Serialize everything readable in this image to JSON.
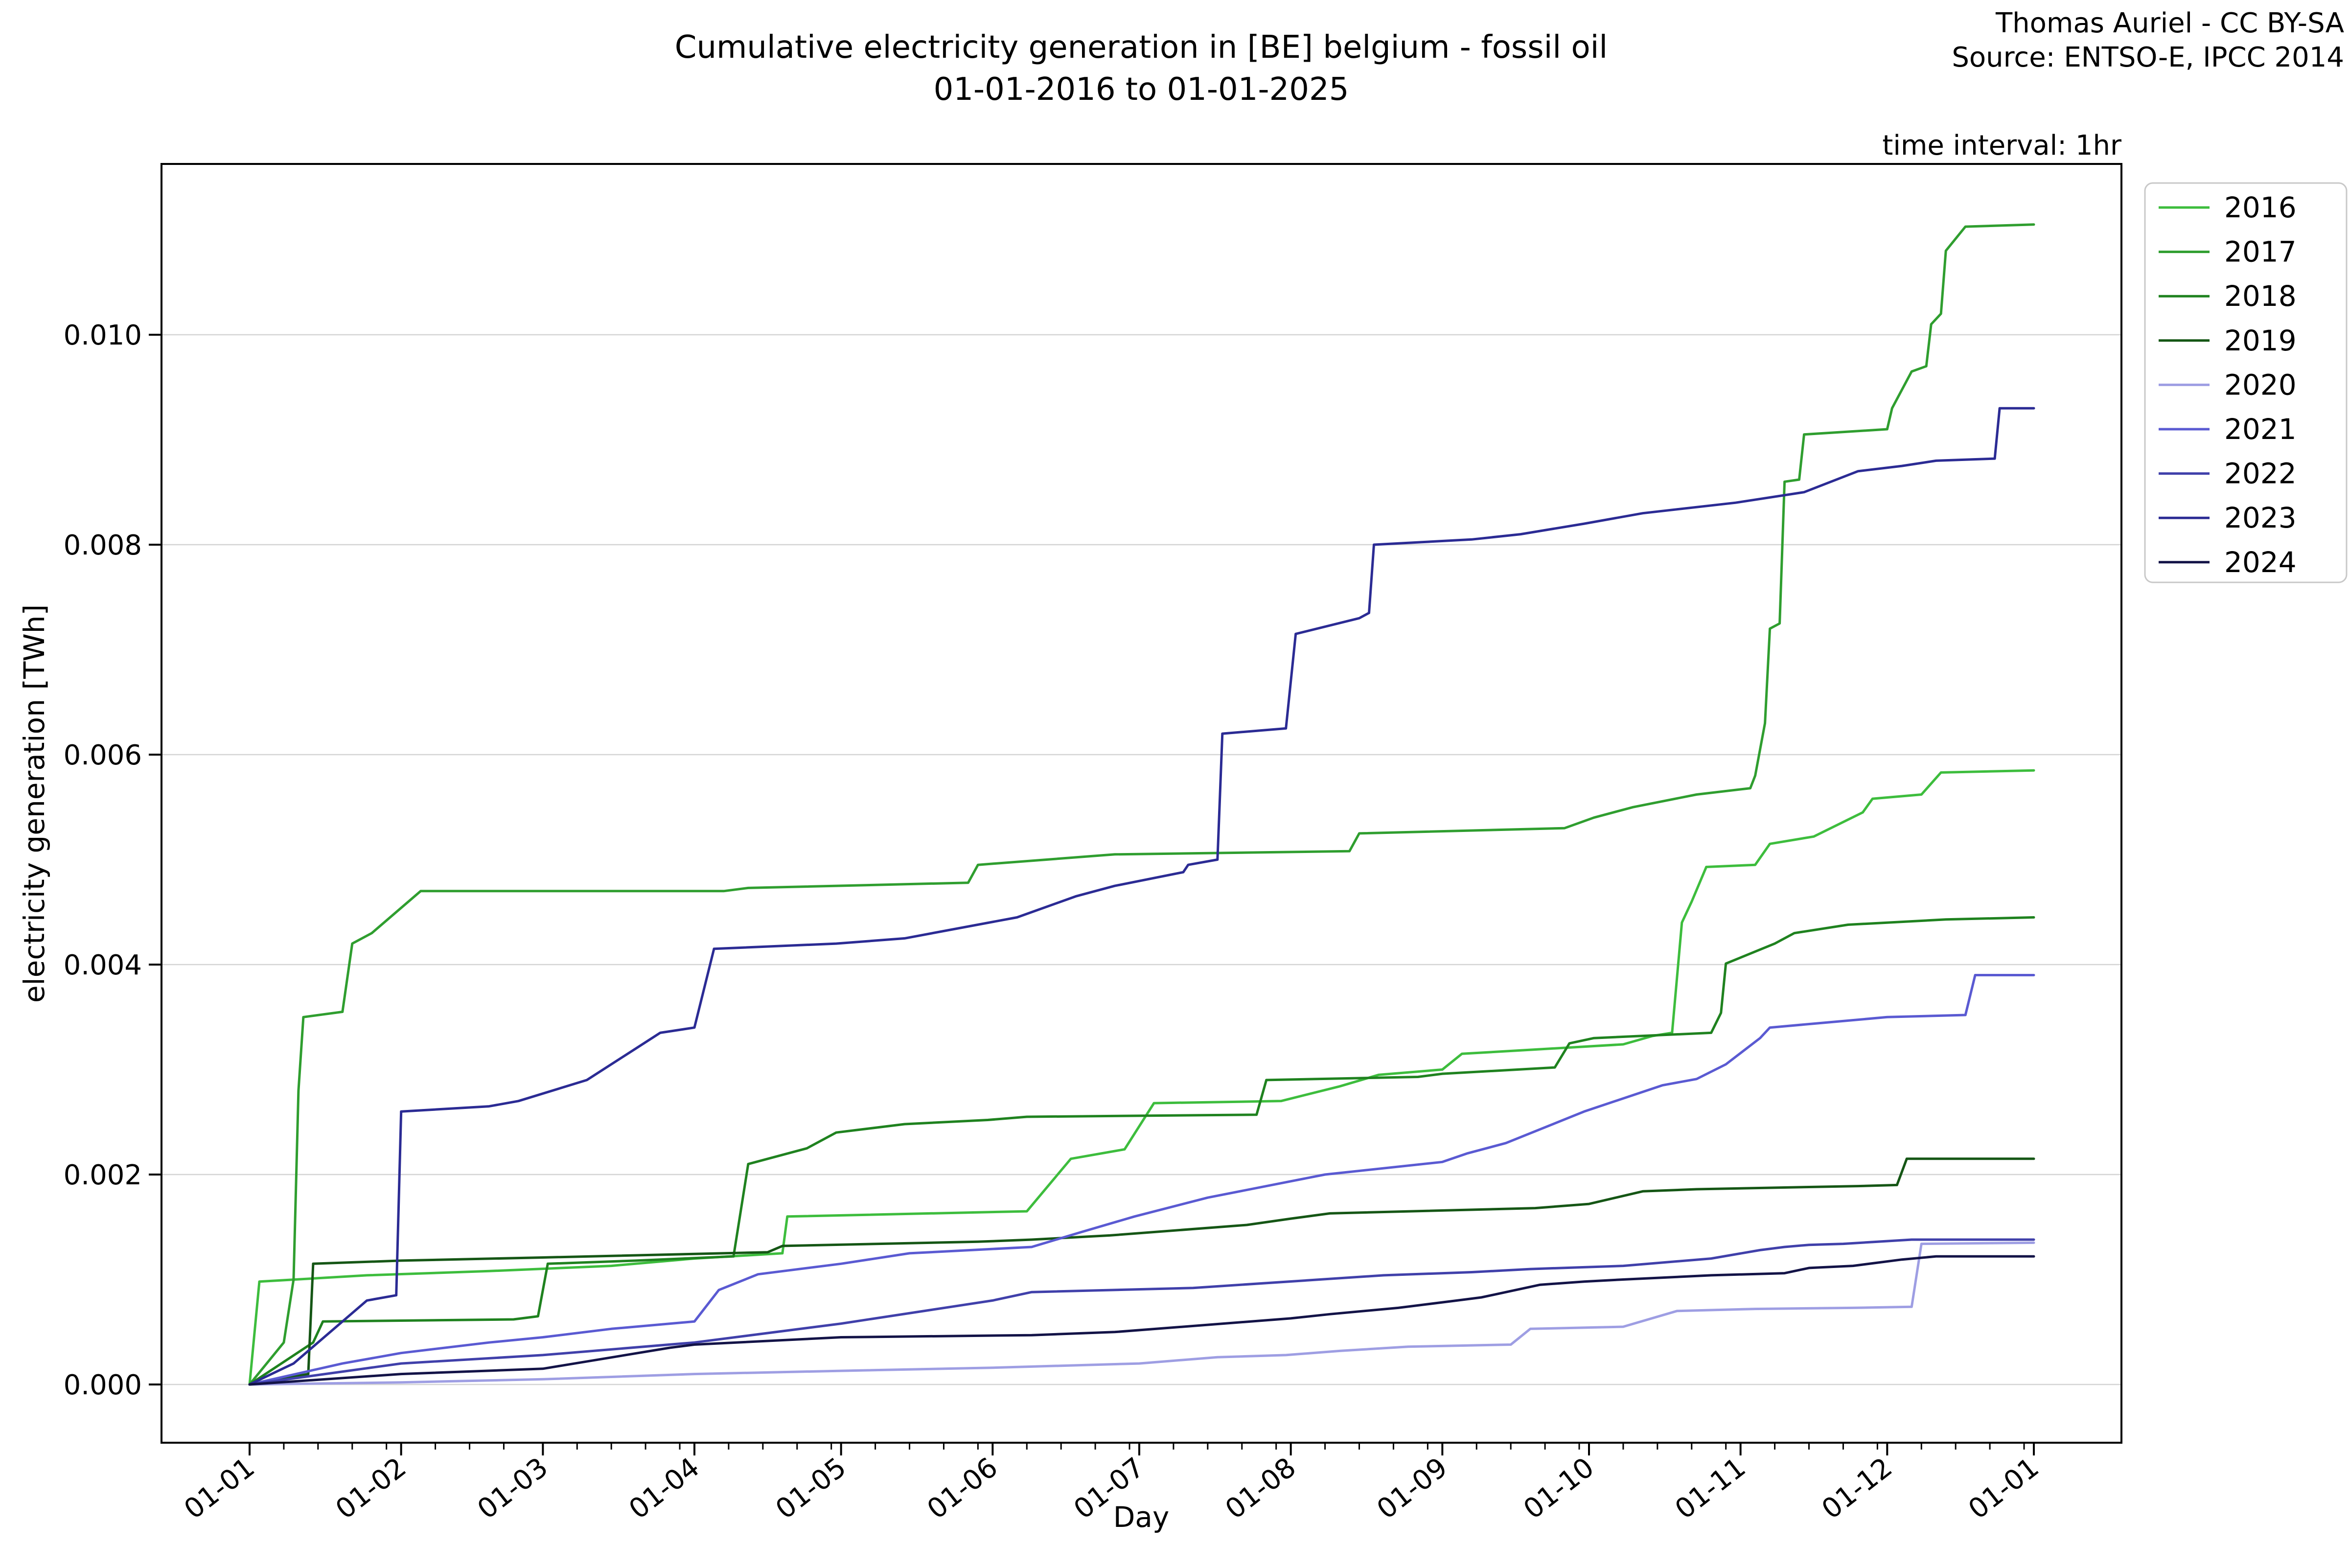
{
  "header": {
    "title_line1": "Cumulative electricity generation in [BE] belgium - fossil oil",
    "title_line2": "01-01-2016 to 01-01-2025",
    "credit_line1": "Thomas Auriel - CC BY-SA",
    "credit_line2": "Source: ENTSO-E, IPCC 2014",
    "note": "time interval: 1hr"
  },
  "axes": {
    "x_label": "Day",
    "y_label": "electricity generation [TWh]"
  },
  "chart_data": {
    "type": "line",
    "title": "Cumulative electricity generation in [BE] belgium - fossil oil 01-01-2016 to 01-01-2025",
    "xlabel": "Day",
    "ylabel": "electricity generation [TWh]",
    "x_unit": "day of year",
    "ylim": [
      -0.00055,
      0.01163
    ],
    "xlim_days": [
      -17,
      384
    ],
    "grid": "horizontal only",
    "legend_position": "upper right, outside plot",
    "y_ticks": [
      {
        "label": "0.000",
        "value": 0.0
      },
      {
        "label": "0.002",
        "value": 0.002
      },
      {
        "label": "0.004",
        "value": 0.004
      },
      {
        "label": "0.006",
        "value": 0.006
      },
      {
        "label": "0.008",
        "value": 0.008
      },
      {
        "label": "0.010",
        "value": 0.01
      }
    ],
    "x_ticks": [
      {
        "label": "01-01",
        "day": 1
      },
      {
        "label": "01-02",
        "day": 32
      },
      {
        "label": "01-03",
        "day": 61
      },
      {
        "label": "01-04",
        "day": 92
      },
      {
        "label": "01-05",
        "day": 122
      },
      {
        "label": "01-06",
        "day": 153
      },
      {
        "label": "01-07",
        "day": 183
      },
      {
        "label": "01-08",
        "day": 214
      },
      {
        "label": "01-09",
        "day": 245
      },
      {
        "label": "01-10",
        "day": 275
      },
      {
        "label": "01-11",
        "day": 306
      },
      {
        "label": "01-12",
        "day": 336
      },
      {
        "label": "01-01",
        "day": 366
      }
    ],
    "series": [
      {
        "name": "2016",
        "color": "#3dbd3d",
        "points": [
          [
            1,
            0
          ],
          [
            3,
            0.00098
          ],
          [
            25,
            0.00104
          ],
          [
            50,
            0.00108
          ],
          [
            75,
            0.00113
          ],
          [
            92,
            0.0012
          ],
          [
            110,
            0.00125
          ],
          [
            111,
            0.0016
          ],
          [
            160,
            0.00165
          ],
          [
            169,
            0.00215
          ],
          [
            180,
            0.00224
          ],
          [
            186,
            0.00268
          ],
          [
            212,
            0.0027
          ],
          [
            224,
            0.00284
          ],
          [
            232,
            0.00295
          ],
          [
            245,
            0.003
          ],
          [
            249,
            0.00315
          ],
          [
            260,
            0.00318
          ],
          [
            282,
            0.00324
          ],
          [
            288,
            0.00332
          ],
          [
            292,
            0.00335
          ],
          [
            294,
            0.0044
          ],
          [
            296,
            0.0046
          ],
          [
            299,
            0.00493
          ],
          [
            309,
            0.00495
          ],
          [
            312,
            0.00515
          ],
          [
            321,
            0.00522
          ],
          [
            331,
            0.00545
          ],
          [
            333,
            0.00558
          ],
          [
            343,
            0.00562
          ],
          [
            347,
            0.00583
          ],
          [
            366,
            0.00585
          ]
        ]
      },
      {
        "name": "2017",
        "color": "#2f9e2f",
        "points": [
          [
            1,
            0
          ],
          [
            8,
            0.0004
          ],
          [
            10,
            0.001
          ],
          [
            11,
            0.0028
          ],
          [
            12,
            0.0035
          ],
          [
            20,
            0.00355
          ],
          [
            22,
            0.0042
          ],
          [
            26,
            0.0043
          ],
          [
            36,
            0.0047
          ],
          [
            98,
            0.0047
          ],
          [
            103,
            0.00473
          ],
          [
            148,
            0.00478
          ],
          [
            150,
            0.00495
          ],
          [
            178,
            0.00505
          ],
          [
            226,
            0.00508
          ],
          [
            228,
            0.00525
          ],
          [
            270,
            0.0053
          ],
          [
            276,
            0.0054
          ],
          [
            284,
            0.0055
          ],
          [
            297,
            0.00562
          ],
          [
            308,
            0.00568
          ],
          [
            309,
            0.0058
          ],
          [
            311,
            0.0063
          ],
          [
            312,
            0.0072
          ],
          [
            314,
            0.00725
          ],
          [
            315,
            0.0086
          ],
          [
            318,
            0.00862
          ],
          [
            319,
            0.00905
          ],
          [
            336,
            0.0091
          ],
          [
            337,
            0.0093
          ],
          [
            341,
            0.00965
          ],
          [
            344,
            0.0097
          ],
          [
            345,
            0.0101
          ],
          [
            347,
            0.0102
          ],
          [
            348,
            0.0108
          ],
          [
            352,
            0.01103
          ],
          [
            366,
            0.01105
          ]
        ]
      },
      {
        "name": "2018",
        "color": "#1f821f",
        "points": [
          [
            1,
            0
          ],
          [
            14,
            0.0004
          ],
          [
            16,
            0.0006
          ],
          [
            55,
            0.00062
          ],
          [
            60,
            0.00065
          ],
          [
            62,
            0.00115
          ],
          [
            80,
            0.00118
          ],
          [
            100,
            0.00122
          ],
          [
            103,
            0.0021
          ],
          [
            115,
            0.00225
          ],
          [
            121,
            0.0024
          ],
          [
            135,
            0.00248
          ],
          [
            152,
            0.00252
          ],
          [
            160,
            0.00255
          ],
          [
            207,
            0.00257
          ],
          [
            209,
            0.0029
          ],
          [
            240,
            0.00293
          ],
          [
            245,
            0.00296
          ],
          [
            268,
            0.00302
          ],
          [
            271,
            0.00325
          ],
          [
            276,
            0.0033
          ],
          [
            300,
            0.00335
          ],
          [
            302,
            0.00354
          ],
          [
            303,
            0.00401
          ],
          [
            313,
            0.0042
          ],
          [
            317,
            0.0043
          ],
          [
            328,
            0.00438
          ],
          [
            348,
            0.00443
          ],
          [
            366,
            0.00445
          ]
        ]
      },
      {
        "name": "2019",
        "color": "#155615",
        "points": [
          [
            1,
            0
          ],
          [
            13,
            0.0001
          ],
          [
            14,
            0.00115
          ],
          [
            32,
            0.00118
          ],
          [
            61,
            0.00121
          ],
          [
            107,
            0.00126
          ],
          [
            110,
            0.00132
          ],
          [
            150,
            0.00136
          ],
          [
            161,
            0.00138
          ],
          [
            177,
            0.00142
          ],
          [
            205,
            0.00152
          ],
          [
            214,
            0.00158
          ],
          [
            222,
            0.00163
          ],
          [
            264,
            0.00168
          ],
          [
            275,
            0.00172
          ],
          [
            286,
            0.00184
          ],
          [
            297,
            0.00186
          ],
          [
            330,
            0.00189
          ],
          [
            338,
            0.0019
          ],
          [
            340,
            0.00215
          ],
          [
            366,
            0.00215
          ]
        ]
      },
      {
        "name": "2020",
        "color": "#9e9ee3",
        "points": [
          [
            1,
            0
          ],
          [
            32,
            2e-05
          ],
          [
            61,
            5e-05
          ],
          [
            92,
            0.0001
          ],
          [
            122,
            0.00013
          ],
          [
            153,
            0.00016
          ],
          [
            183,
            0.0002
          ],
          [
            199,
            0.00026
          ],
          [
            213,
            0.00028
          ],
          [
            224,
            0.00032
          ],
          [
            238,
            0.00036
          ],
          [
            259,
            0.00038
          ],
          [
            263,
            0.00053
          ],
          [
            282,
            0.00055
          ],
          [
            293,
            0.0007
          ],
          [
            309,
            0.00072
          ],
          [
            329,
            0.00073
          ],
          [
            341,
            0.00074
          ],
          [
            343,
            0.00134
          ],
          [
            366,
            0.00135
          ]
        ]
      },
      {
        "name": "2021",
        "color": "#5a5ad2",
        "points": [
          [
            1,
            0
          ],
          [
            20,
            0.0002
          ],
          [
            32,
            0.0003
          ],
          [
            50,
            0.0004
          ],
          [
            61,
            0.00045
          ],
          [
            75,
            0.00053
          ],
          [
            92,
            0.0006
          ],
          [
            97,
            0.0009
          ],
          [
            105,
            0.00105
          ],
          [
            122,
            0.00115
          ],
          [
            136,
            0.00125
          ],
          [
            161,
            0.00131
          ],
          [
            171,
            0.00145
          ],
          [
            182,
            0.0016
          ],
          [
            197,
            0.00178
          ],
          [
            221,
            0.002
          ],
          [
            245,
            0.00212
          ],
          [
            250,
            0.0022
          ],
          [
            258,
            0.0023
          ],
          [
            274,
            0.0026
          ],
          [
            290,
            0.00285
          ],
          [
            297,
            0.00291
          ],
          [
            303,
            0.00305
          ],
          [
            310,
            0.0033
          ],
          [
            312,
            0.0034
          ],
          [
            324,
            0.00345
          ],
          [
            336,
            0.0035
          ],
          [
            352,
            0.00352
          ],
          [
            354,
            0.0039
          ],
          [
            366,
            0.0039
          ]
        ]
      },
      {
        "name": "2022",
        "color": "#4040aa",
        "points": [
          [
            1,
            0
          ],
          [
            32,
            0.0002
          ],
          [
            61,
            0.00028
          ],
          [
            92,
            0.0004
          ],
          [
            122,
            0.00058
          ],
          [
            153,
            0.0008
          ],
          [
            161,
            0.00088
          ],
          [
            194,
            0.00092
          ],
          [
            233,
            0.00104
          ],
          [
            251,
            0.00107
          ],
          [
            263,
            0.0011
          ],
          [
            282,
            0.00113
          ],
          [
            300,
            0.0012
          ],
          [
            310,
            0.00128
          ],
          [
            315,
            0.00131
          ],
          [
            320,
            0.00133
          ],
          [
            327,
            0.00134
          ],
          [
            341,
            0.00138
          ],
          [
            366,
            0.00138
          ]
        ]
      },
      {
        "name": "2023",
        "color": "#2b2b94",
        "points": [
          [
            1,
            0
          ],
          [
            10,
            0.0002
          ],
          [
            25,
            0.0008
          ],
          [
            31,
            0.00085
          ],
          [
            32,
            0.0026
          ],
          [
            50,
            0.00265
          ],
          [
            56,
            0.0027
          ],
          [
            70,
            0.0029
          ],
          [
            80,
            0.0032
          ],
          [
            85,
            0.00335
          ],
          [
            92,
            0.0034
          ],
          [
            96,
            0.00415
          ],
          [
            121,
            0.0042
          ],
          [
            135,
            0.00425
          ],
          [
            158,
            0.00445
          ],
          [
            170,
            0.00465
          ],
          [
            178,
            0.00475
          ],
          [
            192,
            0.00488
          ],
          [
            193,
            0.00495
          ],
          [
            199,
            0.005
          ],
          [
            200,
            0.0062
          ],
          [
            213,
            0.00625
          ],
          [
            215,
            0.00715
          ],
          [
            228,
            0.0073
          ],
          [
            230,
            0.00735
          ],
          [
            231,
            0.008
          ],
          [
            251,
            0.00805
          ],
          [
            261,
            0.0081
          ],
          [
            274,
            0.0082
          ],
          [
            286,
            0.0083
          ],
          [
            305,
            0.0084
          ],
          [
            319,
            0.0085
          ],
          [
            330,
            0.0087
          ],
          [
            339,
            0.00875
          ],
          [
            346,
            0.0088
          ],
          [
            358,
            0.00882
          ],
          [
            359,
            0.0093
          ],
          [
            366,
            0.0093
          ]
        ]
      },
      {
        "name": "2024",
        "color": "#131347",
        "points": [
          [
            1,
            0
          ],
          [
            32,
            0.0001
          ],
          [
            61,
            0.00015
          ],
          [
            87,
            0.00035
          ],
          [
            92,
            0.00038
          ],
          [
            122,
            0.00045
          ],
          [
            161,
            0.00047
          ],
          [
            178,
            0.0005
          ],
          [
            214,
            0.00063
          ],
          [
            222,
            0.00067
          ],
          [
            236,
            0.00073
          ],
          [
            248,
            0.0008
          ],
          [
            253,
            0.00083
          ],
          [
            265,
            0.00095
          ],
          [
            274,
            0.00098
          ],
          [
            282,
            0.001
          ],
          [
            300,
            0.00104
          ],
          [
            315,
            0.00106
          ],
          [
            320,
            0.00111
          ],
          [
            329,
            0.00113
          ],
          [
            339,
            0.00119
          ],
          [
            346,
            0.00122
          ],
          [
            366,
            0.00122
          ]
        ]
      }
    ]
  },
  "style": {
    "grid_color": "#d4d4d4",
    "frame_color": "#000000",
    "legend_border_color": "#c8c8c8",
    "background_color": "#ffffff"
  }
}
